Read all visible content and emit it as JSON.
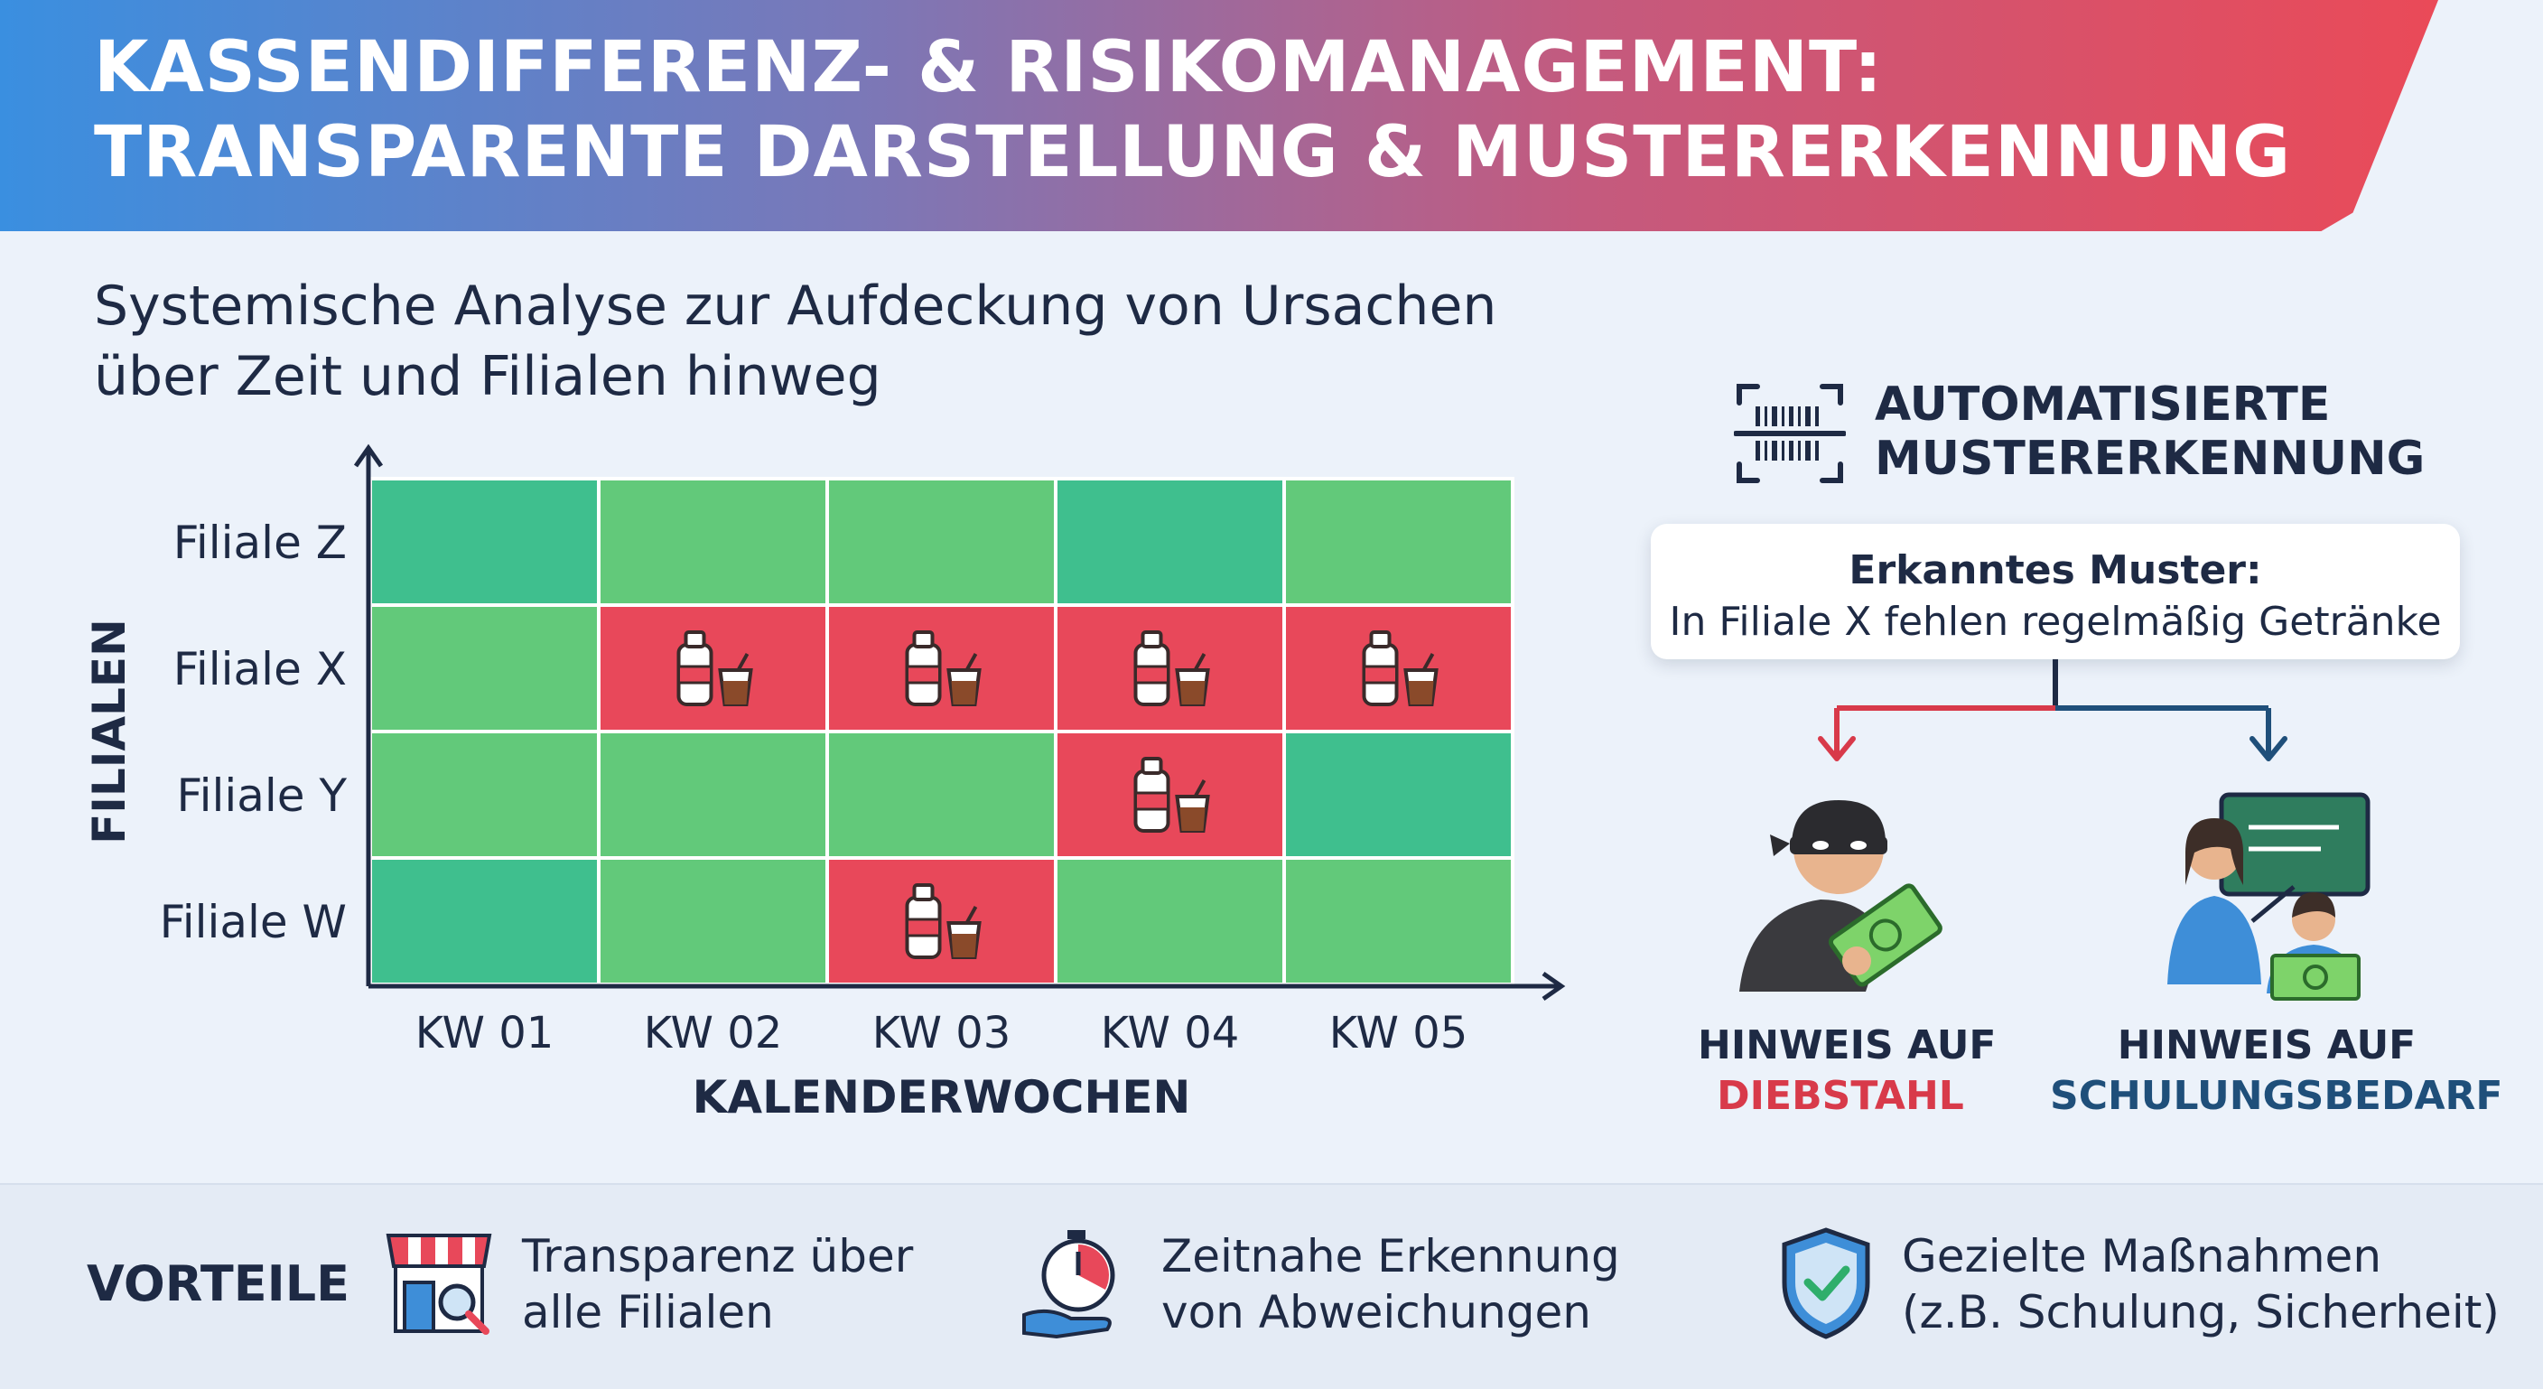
{
  "header": {
    "line1": "KASSENDIFFERENZ- & RISIKOMANAGEMENT:",
    "line2": "TRANSPARENTE DARSTELLUNG & MUSTERERKENNUNG"
  },
  "subtitle": {
    "line1": "Systemische Analyse zur Aufdeckung von Ursachen",
    "line2": "über Zeit und Filialen hinweg"
  },
  "chart_data": {
    "type": "heatmap",
    "xlabel": "KALENDERWOCHEN",
    "ylabel": "FILIALEN",
    "x_categories": [
      "KW 01",
      "KW 02",
      "KW 03",
      "KW 04",
      "KW 05"
    ],
    "y_categories": [
      "Filiale Z",
      "Filiale X",
      "Filiale Y",
      "Filiale W"
    ],
    "cells": [
      [
        "ok",
        "ok",
        "ok",
        "ok",
        "ok"
      ],
      [
        "ok",
        "fehlend",
        "fehlend",
        "fehlend",
        "fehlend"
      ],
      [
        "ok",
        "ok",
        "ok",
        "fehlend",
        "ok"
      ],
      [
        "ok",
        "ok",
        "fehlend",
        "ok",
        "ok"
      ]
    ],
    "colors": {
      "ok": "#62c97a",
      "ok_dark": "#3fbf8e",
      "fehlend": "#e8485a"
    },
    "flag_icon": "beverage-icon"
  },
  "pattern": {
    "title_line1": "AUTOMATISIERTE",
    "title_line2": "MUSTERERKENNUNG",
    "icon": "barcode-scan-icon",
    "box_head": "Erkanntes Muster:",
    "box_body": "In Filiale X fehlen regelmäßig Getränke"
  },
  "hints": {
    "theft_line1": "HINWEIS AUF",
    "theft_line2": "DIEBSTAHL",
    "training_line1": "HINWEIS AUF",
    "training_line2": "SCHULUNGSBEDARF",
    "theft_color": "#d83a4a",
    "training_color": "#1f4f7a"
  },
  "footer": {
    "label": "VORTEILE",
    "items": [
      {
        "icon": "store-search-icon",
        "line1": "Transparenz über",
        "line2": "alle Filialen"
      },
      {
        "icon": "stopwatch-hand-icon",
        "line1": "Zeitnahe Erkennung",
        "line2": "von Abweichungen"
      },
      {
        "icon": "shield-check-icon",
        "line1": "Gezielte Maßnahmen",
        "line2": "(z.B. Schulung, Sicherheit)"
      }
    ]
  }
}
